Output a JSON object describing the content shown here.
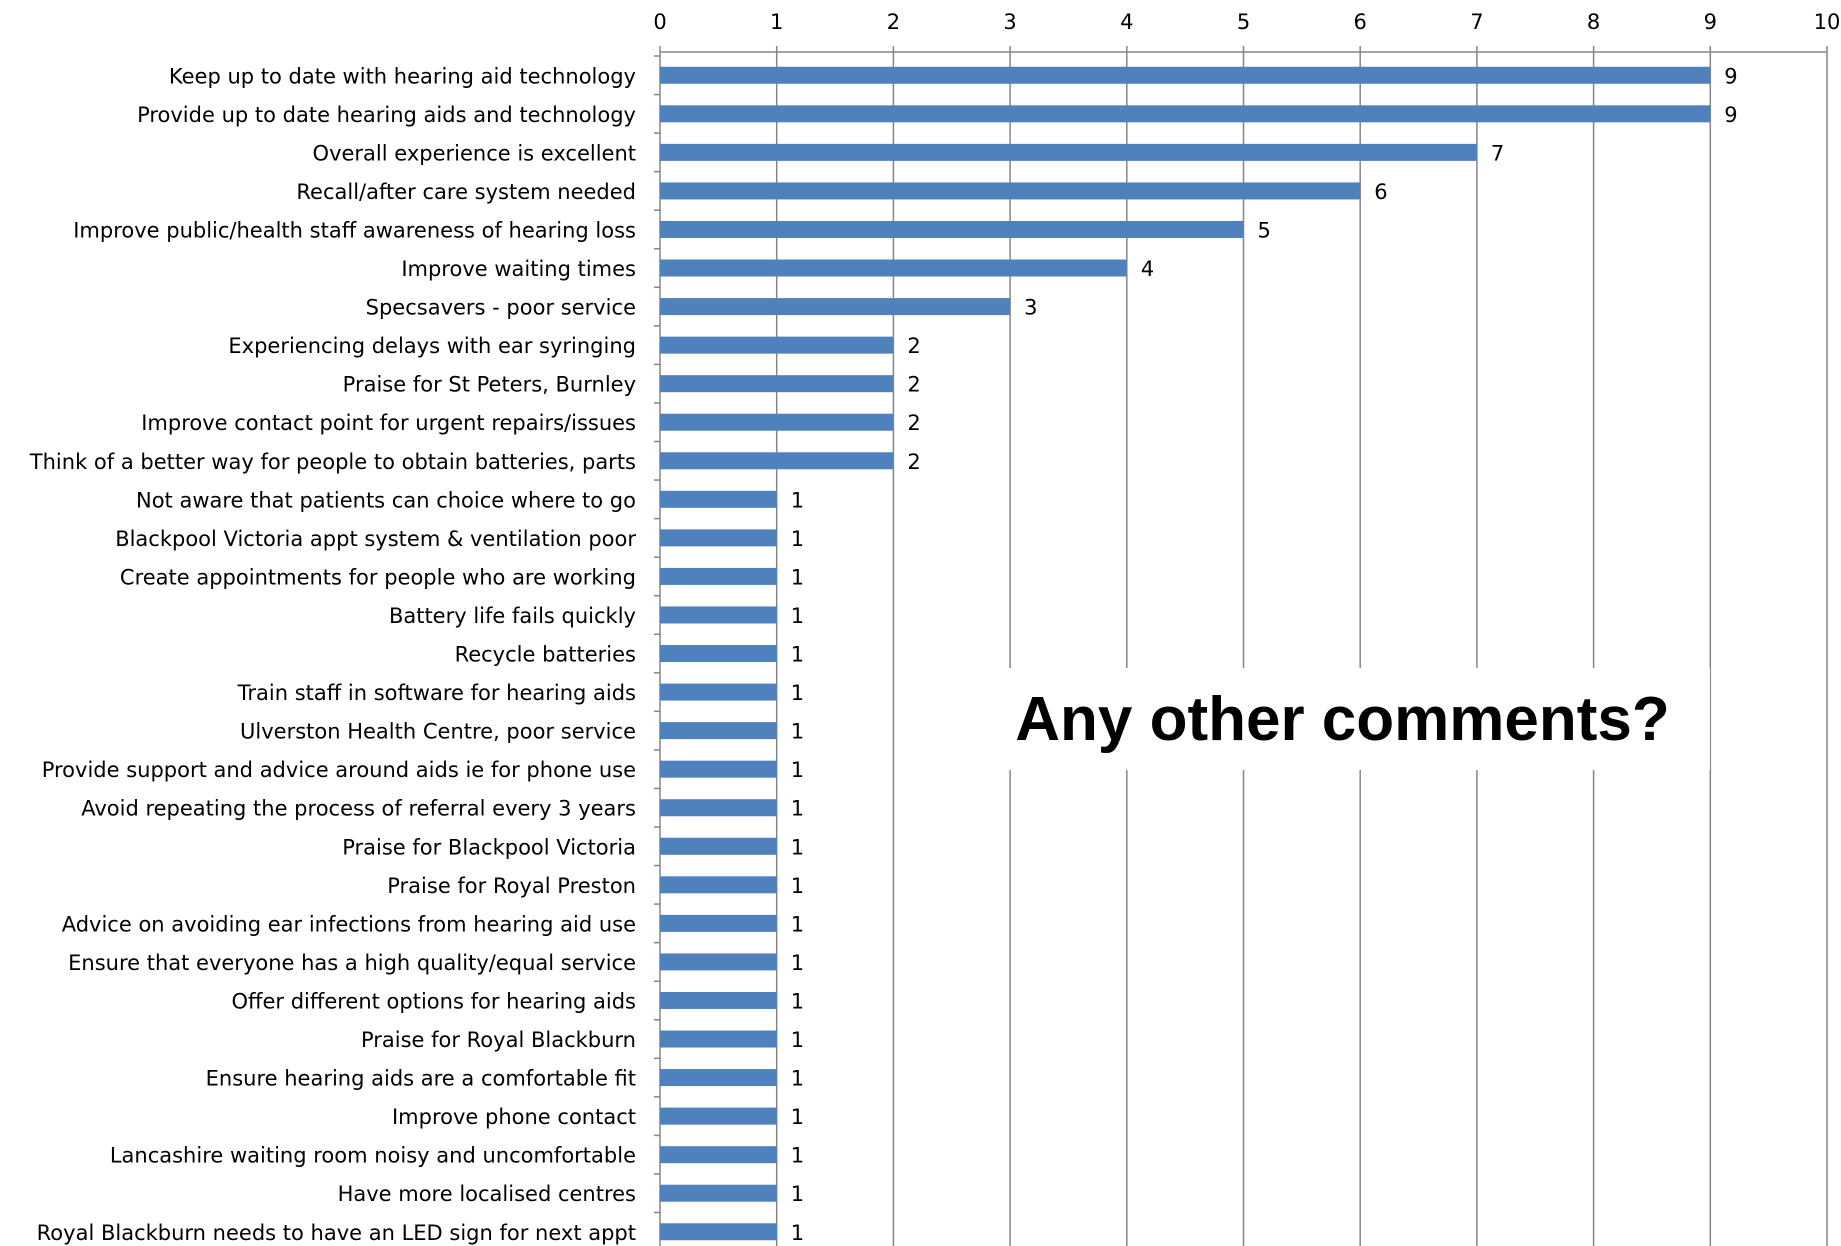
{
  "overlay": {
    "text": "Any other comments?"
  },
  "colors": {
    "bar": "#4F81BD",
    "grid": "#868686"
  },
  "chart_data": {
    "type": "bar",
    "orientation": "horizontal",
    "xlim": [
      0,
      10
    ],
    "ticks": [
      "0",
      "1",
      "2",
      "3",
      "4",
      "5",
      "6",
      "7",
      "8",
      "9",
      "10"
    ],
    "grid": true,
    "categories": [
      "Keep up to date with hearing aid technology",
      "Provide up to date hearing aids and technology",
      "Overall experience is excellent",
      "Recall/after care system needed",
      "Improve public/health staff awareness of hearing loss",
      "Improve waiting times",
      "Specsavers - poor service",
      "Experiencing delays with ear syringing",
      "Praise for St Peters, Burnley",
      "Improve contact point for urgent repairs/issues",
      "Think of a better way for people to obtain batteries, parts",
      "Not aware that patients can choice where to go",
      "Blackpool Victoria appt system & ventilation poor",
      "Create appointments for people who are working",
      "Battery life fails quickly",
      "Recycle batteries",
      "Train staff in software for hearing aids",
      "Ulverston Health Centre, poor service",
      "Provide support and advice around aids ie for phone use",
      "Avoid repeating the process of referral every 3 years",
      "Praise for Blackpool Victoria",
      "Praise for Royal Preston",
      "Advice on avoiding ear infections from hearing aid use",
      "Ensure that everyone has a high quality/equal service",
      "Offer different options for hearing aids",
      "Praise for Royal Blackburn",
      "Ensure hearing aids are a comfortable fit",
      "Improve phone contact",
      "Lancashire waiting room noisy and uncomfortable",
      "Have more localised centres",
      "Royal Blackburn needs to have an LED sign for next appt"
    ],
    "values": [
      9,
      9,
      7,
      6,
      5,
      4,
      3,
      2,
      2,
      2,
      2,
      1,
      1,
      1,
      1,
      1,
      1,
      1,
      1,
      1,
      1,
      1,
      1,
      1,
      1,
      1,
      1,
      1,
      1,
      1,
      1
    ],
    "data_labels": [
      "9",
      "9",
      "7",
      "6",
      "5",
      "4",
      "3",
      "2",
      "2",
      "2",
      "2",
      "1",
      "1",
      "1",
      "1",
      "1",
      "1",
      "1",
      "1",
      "1",
      "1",
      "1",
      "1",
      "1",
      "1",
      "1",
      "1",
      "1",
      "1",
      "1",
      "1"
    ]
  }
}
